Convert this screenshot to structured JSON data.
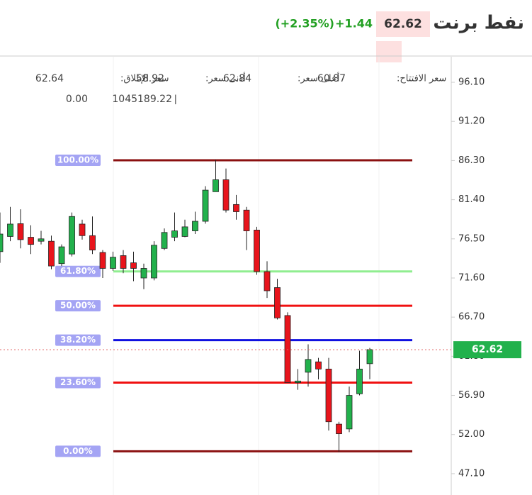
{
  "header": {
    "title": "نفط برنت",
    "price": 62.62,
    "change": "+1.44",
    "change_pct": "(+2.35%)"
  },
  "chart_data": {
    "type": "candlestick",
    "open": [
      74.9,
      76.8,
      78.4,
      76.7,
      76.2,
      76.2,
      73.4,
      74.6,
      78.35,
      76.9,
      74.8,
      72.8,
      74.4,
      73.5,
      71.6,
      71.6,
      75.3,
      76.7,
      76.8,
      77.5,
      78.7,
      82.4,
      83.9,
      80.8,
      80.1,
      77.6,
      72.4,
      70.4,
      66.9,
      58.5,
      59.8,
      61.1,
      60.2,
      53.3,
      52.7,
      57.1,
      60.87
    ],
    "high": [
      79.8,
      80.5,
      80.2,
      78.2,
      77.5,
      76.9,
      75.8,
      79.8,
      78.9,
      79.3,
      75.1,
      74.9,
      75.1,
      74.9,
      73.4,
      76.2,
      77.8,
      79.8,
      78.9,
      79.9,
      83.1,
      86.4,
      85.3,
      82.0,
      80.5,
      78.0,
      73.7,
      71.5,
      67.3,
      60.2,
      63.3,
      61.6,
      61.6,
      53.6,
      58.0,
      62.5,
      62.84
    ],
    "low": [
      73.5,
      76.2,
      75.3,
      74.6,
      75.8,
      72.7,
      73.1,
      74.3,
      76.4,
      74.6,
      71.6,
      72.5,
      72.2,
      71.2,
      70.2,
      71.3,
      75.1,
      76.2,
      76.7,
      77.1,
      78.4,
      82.4,
      79.8,
      78.9,
      75.1,
      72.0,
      69.1,
      66.4,
      58.5,
      57.6,
      58.0,
      58.9,
      52.5,
      49.8,
      52.3,
      56.9,
      58.92
    ],
    "close": [
      77.1,
      78.35,
      76.4,
      75.8,
      76.5,
      73.1,
      75.5,
      79.3,
      76.9,
      75.1,
      72.8,
      74.2,
      72.8,
      72.8,
      72.8,
      75.7,
      77.3,
      77.5,
      78.0,
      78.7,
      82.6,
      83.9,
      80.1,
      79.9,
      77.5,
      72.4,
      70.0,
      66.6,
      58.5,
      58.7,
      61.4,
      60.2,
      53.6,
      52.1,
      56.9,
      60.2,
      62.64
    ],
    "up_color": "#22b14c",
    "down_color": "#e8141c",
    "last_price": 62.62,
    "last_price_color": "#22b14c",
    "ylim": [
      44.43,
      99.3
    ],
    "yticks": [
      {
        "value": 96.1,
        "label": "96.10"
      },
      {
        "value": 91.2,
        "label": "91.20"
      },
      {
        "value": 86.3,
        "label": "86.30"
      },
      {
        "value": 81.4,
        "label": "81.40"
      },
      {
        "value": 76.5,
        "label": "76.50"
      },
      {
        "value": 71.6,
        "label": "71.60"
      },
      {
        "value": 66.7,
        "label": "66.70"
      },
      {
        "value": 61.8,
        "label": "61.80"
      },
      {
        "value": 56.9,
        "label": "56.90"
      },
      {
        "value": 52.0,
        "label": "52.00"
      },
      {
        "value": 47.1,
        "label": "47.10"
      }
    ],
    "fib_levels": [
      {
        "label": "100.00%",
        "price": 86.34,
        "color": "#8b1010"
      },
      {
        "label": "61.80%",
        "price": 72.42,
        "color": "#90ee90"
      },
      {
        "label": "50.00%",
        "price": 68.12,
        "color": "#f01010"
      },
      {
        "label": "38.20%",
        "price": 63.82,
        "color": "#1010e0"
      },
      {
        "label": "23.60%",
        "price": 58.5,
        "color": "#f01010"
      },
      {
        "label": "0.00%",
        "price": 49.9,
        "color": "#8b1010"
      }
    ],
    "ohlc_legend": [
      {
        "label": "سعر الافتتاح:",
        "value": 60.87
      },
      {
        "label": "أعلى سعر:",
        "value": 62.84
      },
      {
        "label": "أدنى سعر:",
        "value": 58.92
      },
      {
        "label": "سعر الإغلاق:",
        "value": 62.64
      }
    ],
    "indicator_values": [
      "1045189.22",
      "0.00"
    ]
  }
}
